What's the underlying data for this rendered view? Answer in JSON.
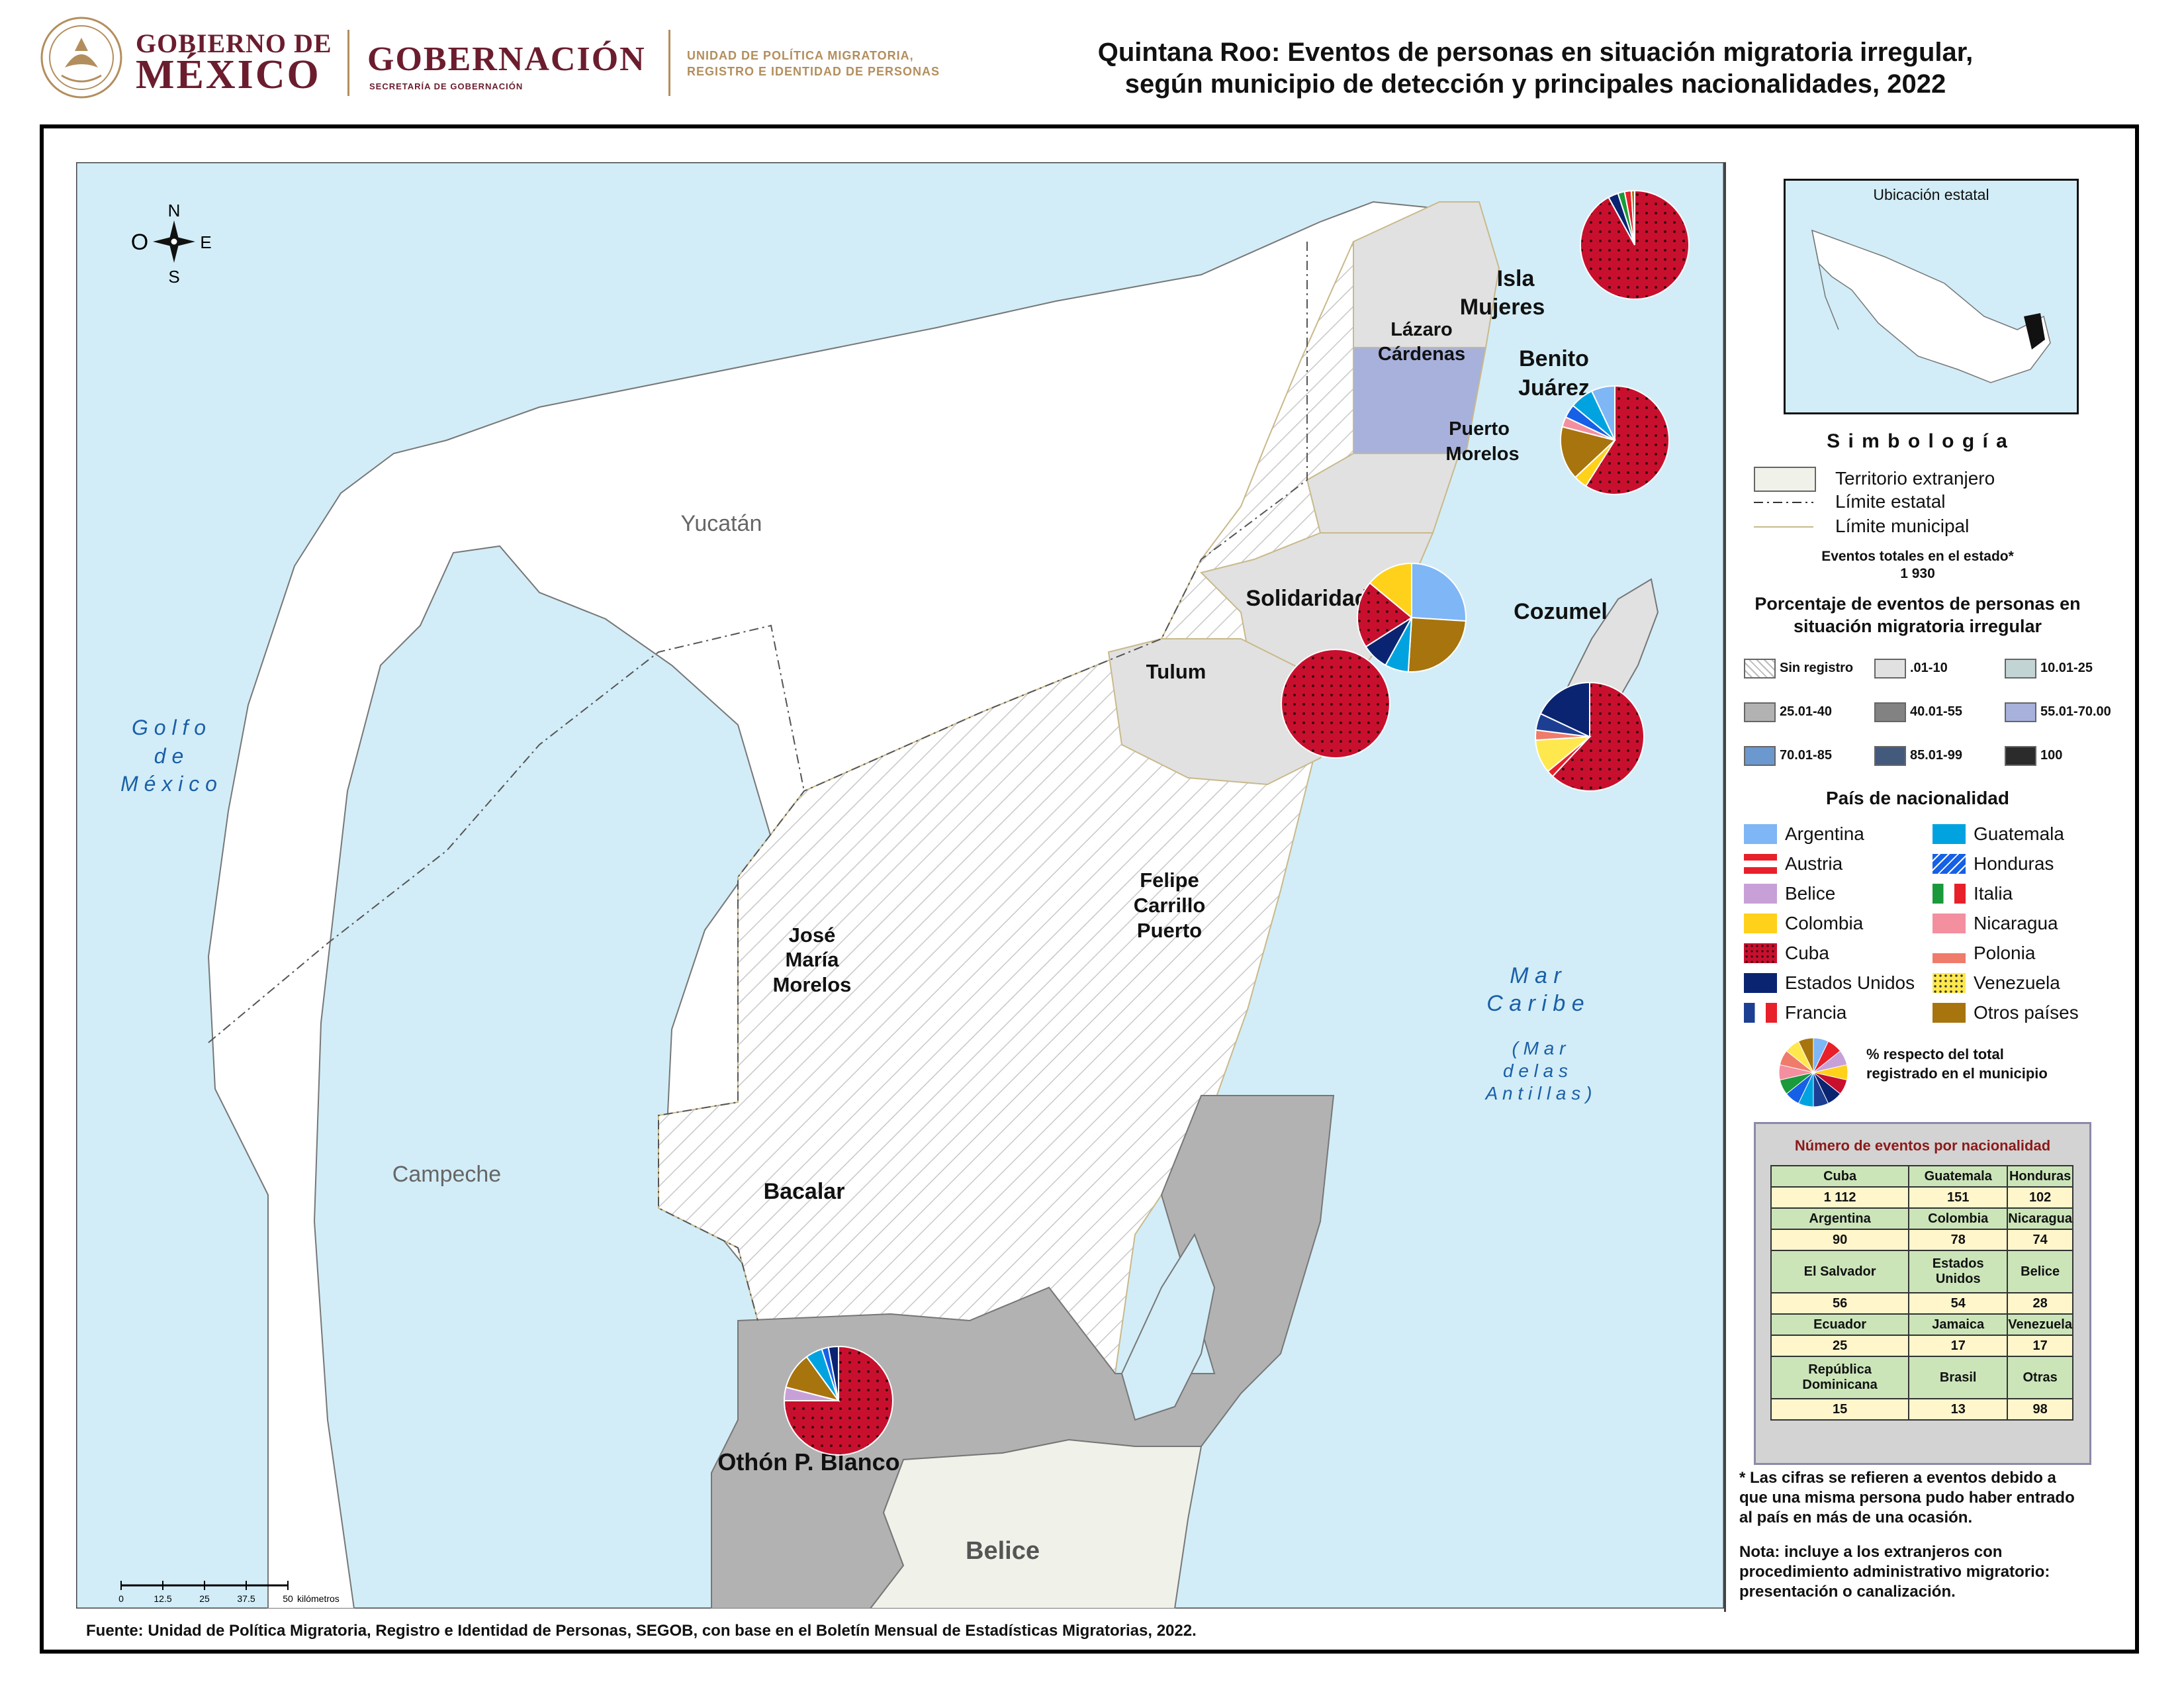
{
  "header": {
    "gob_line1": "GOBIERNO DE",
    "gob_line2": "MÉXICO",
    "gobernacion": "GOBERNACIÓN",
    "secretaria": "SECRETARÍA DE GOBERNACIÓN",
    "unidad_line1": "UNIDAD DE POLÍTICA MIGRATORIA,",
    "unidad_line2": "REGISTRO E IDENTIDAD DE PERSONAS",
    "title_line1": "Quintana Roo: Eventos de personas en situación migratoria irregular,",
    "title_line2": "según municipio de detección y principales nacionalidades, 2022"
  },
  "map": {
    "compass": {
      "n": "N",
      "s": "S",
      "e": "E",
      "o": "O"
    },
    "regions": {
      "yucatan": "Yucatán",
      "campeche": "Campeche",
      "belice": "Belice",
      "golfo_1": "G o l f o",
      "golfo_2": "d e",
      "golfo_3": "M é x i c o",
      "caribe_1": "M a r",
      "caribe_2": "C a r i b e",
      "antillas_1": "( M a r",
      "antillas_2": "d e   l a s",
      "antillas_3": "A n t i l l a s )"
    },
    "municipios": {
      "isla_mujeres_1": "Isla",
      "isla_mujeres_2": "Mujeres",
      "lazaro_1": "Lázaro",
      "lazaro_2": "Cárdenas",
      "benito_1": "Benito",
      "benito_2": "Juárez",
      "puerto_1": "Puerto",
      "puerto_2": "Morelos",
      "solidaridad": "Solidaridad",
      "cozumel": "Cozumel",
      "tulum": "Tulum",
      "felipe_1": "Felipe",
      "felipe_2": "Carrillo",
      "felipe_3": "Puerto",
      "jose_1": "José",
      "jose_2": "María",
      "jose_3": "Morelos",
      "bacalar": "Bacalar",
      "othon": "Othón P. Blanco"
    },
    "scale": {
      "t0": "0",
      "t1": "12.5",
      "t2": "25",
      "t3": "37.5",
      "t4": "50",
      "unit": "kilómetros"
    }
  },
  "legend": {
    "ubicacion": "Ubicación estatal",
    "simbologia": "S i m b o l o g í a",
    "territorio": "Territorio extranjero",
    "limite_estatal": "Límite estatal",
    "limite_municipal": "Límite municipal",
    "eventos_totales": "Eventos totales en el estado*",
    "eventos_valor": "1 930",
    "porcentaje_1": "Porcentaje de eventos de personas en",
    "porcentaje_2": "situación migratoria irregular",
    "classes": [
      {
        "label": "Sin registro",
        "color": "#ffffff"
      },
      {
        "label": ".01-10",
        "color": "#e1e1e1"
      },
      {
        "label": "10.01-25",
        "color": "#c3d4d4"
      },
      {
        "label": "25.01-40",
        "color": "#b2b2b2"
      },
      {
        "label": "40.01-55",
        "color": "#828282"
      },
      {
        "label": "55.01-70.00",
        "color": "#a7b1dc"
      },
      {
        "label": "70.01-85",
        "color": "#6b98cf"
      },
      {
        "label": "85.01-99",
        "color": "#445a7c"
      },
      {
        "label": "100",
        "color": "#2b2b2b"
      }
    ],
    "pais_title": "País de nacionalidad",
    "nationalities": [
      {
        "label": "Argentina",
        "color": "#7fb6f5"
      },
      {
        "label": "Austria",
        "color": "#e8202a"
      },
      {
        "label": "Belice",
        "color": "#c8a0d8"
      },
      {
        "label": "Colombia",
        "color": "#ffd11a"
      },
      {
        "label": "Cuba",
        "color": "#c8102e"
      },
      {
        "label": "Estados Unidos",
        "color": "#0a2472"
      },
      {
        "label": "Francia",
        "color": "#1c3f94"
      },
      {
        "label": "Guatemala",
        "color": "#00a3e0"
      },
      {
        "label": "Honduras",
        "color": "#1560e6"
      },
      {
        "label": "Italia",
        "color": "#1a9a3a"
      },
      {
        "label": "Nicaragua",
        "color": "#f48fa0"
      },
      {
        "label": "Polonia",
        "color": "#ef7b6b"
      },
      {
        "label": "Venezuela",
        "color": "#ffe84d"
      },
      {
        "label": "Otros países",
        "color": "#a8740e"
      }
    ],
    "pct_note_1": "% respecto del total",
    "pct_note_2": "registrado en el municipio"
  },
  "table": {
    "title": "Número de eventos por nacionalidad",
    "rows": [
      {
        "names": [
          "Cuba",
          "Guatemala",
          "Honduras"
        ],
        "values": [
          "1 112",
          "151",
          "102"
        ]
      },
      {
        "names": [
          "Argentina",
          "Colombia",
          "Nicaragua"
        ],
        "values": [
          "90",
          "78",
          "74"
        ]
      },
      {
        "names": [
          "El Salvador",
          "Estados Unidos",
          "Belice"
        ],
        "values": [
          "56",
          "54",
          "28"
        ]
      },
      {
        "names": [
          "Ecuador",
          "Jamaica",
          "Venezuela"
        ],
        "values": [
          "25",
          "17",
          "17"
        ]
      },
      {
        "names": [
          "República Dominicana",
          "Brasil",
          "Otras"
        ],
        "values": [
          "15",
          "13",
          "98"
        ]
      }
    ]
  },
  "notes": {
    "n1_1": "* Las cifras se refieren a eventos debido a",
    "n1_2": "que una misma persona pudo haber entrado",
    "n1_3": "al país en más de una ocasión.",
    "n2_1": "Nota: incluye a los extranjeros con",
    "n2_2": "procedimiento administrativo migratorio:",
    "n2_3": "presentación o canalización."
  },
  "source": "Fuente: Unidad de Política Migratoria, Registro e Identidad de Personas, SEGOB, con base en el Boletín Mensual de Estadísticas Migratorias, 2022.",
  "chart_data": {
    "type": "pie",
    "pies": [
      {
        "municipio": "Isla Mujeres",
        "slices": [
          {
            "name": "Cuba",
            "value": 92
          },
          {
            "name": "Estados Unidos",
            "value": 3
          },
          {
            "name": "Italia",
            "value": 2
          },
          {
            "name": "Austria",
            "value": 2
          },
          {
            "name": "Otros países",
            "value": 1
          }
        ]
      },
      {
        "municipio": "Benito Juárez",
        "slices": [
          {
            "name": "Cuba",
            "value": 59
          },
          {
            "name": "Colombia",
            "value": 4
          },
          {
            "name": "Otros países",
            "value": 16
          },
          {
            "name": "Nicaragua",
            "value": 3
          },
          {
            "name": "Honduras",
            "value": 4
          },
          {
            "name": "Guatemala",
            "value": 7
          },
          {
            "name": "Argentina",
            "value": 7
          }
        ]
      },
      {
        "municipio": "Solidaridad",
        "slices": [
          {
            "name": "Argentina",
            "value": 26
          },
          {
            "name": "Otros países",
            "value": 25
          },
          {
            "name": "Guatemala",
            "value": 7
          },
          {
            "name": "Estados Unidos",
            "value": 8
          },
          {
            "name": "Cuba",
            "value": 20
          },
          {
            "name": "Colombia",
            "value": 14
          }
        ]
      },
      {
        "municipio": "Tulum",
        "slices": [
          {
            "name": "Cuba",
            "value": 100
          }
        ]
      },
      {
        "municipio": "Cozumel",
        "slices": [
          {
            "name": "Cuba",
            "value": 62
          },
          {
            "name": "Austria",
            "value": 2
          },
          {
            "name": "Venezuela",
            "value": 10
          },
          {
            "name": "Polonia",
            "value": 3
          },
          {
            "name": "Francia",
            "value": 5
          },
          {
            "name": "Estados Unidos",
            "value": 18
          }
        ]
      },
      {
        "municipio": "Othón P. Blanco",
        "slices": [
          {
            "name": "Cuba",
            "value": 75
          },
          {
            "name": "Belice",
            "value": 4
          },
          {
            "name": "Otros países",
            "value": 11
          },
          {
            "name": "Guatemala",
            "value": 5
          },
          {
            "name": "Honduras",
            "value": 2
          },
          {
            "name": "Estados Unidos",
            "value": 3
          }
        ]
      }
    ]
  }
}
